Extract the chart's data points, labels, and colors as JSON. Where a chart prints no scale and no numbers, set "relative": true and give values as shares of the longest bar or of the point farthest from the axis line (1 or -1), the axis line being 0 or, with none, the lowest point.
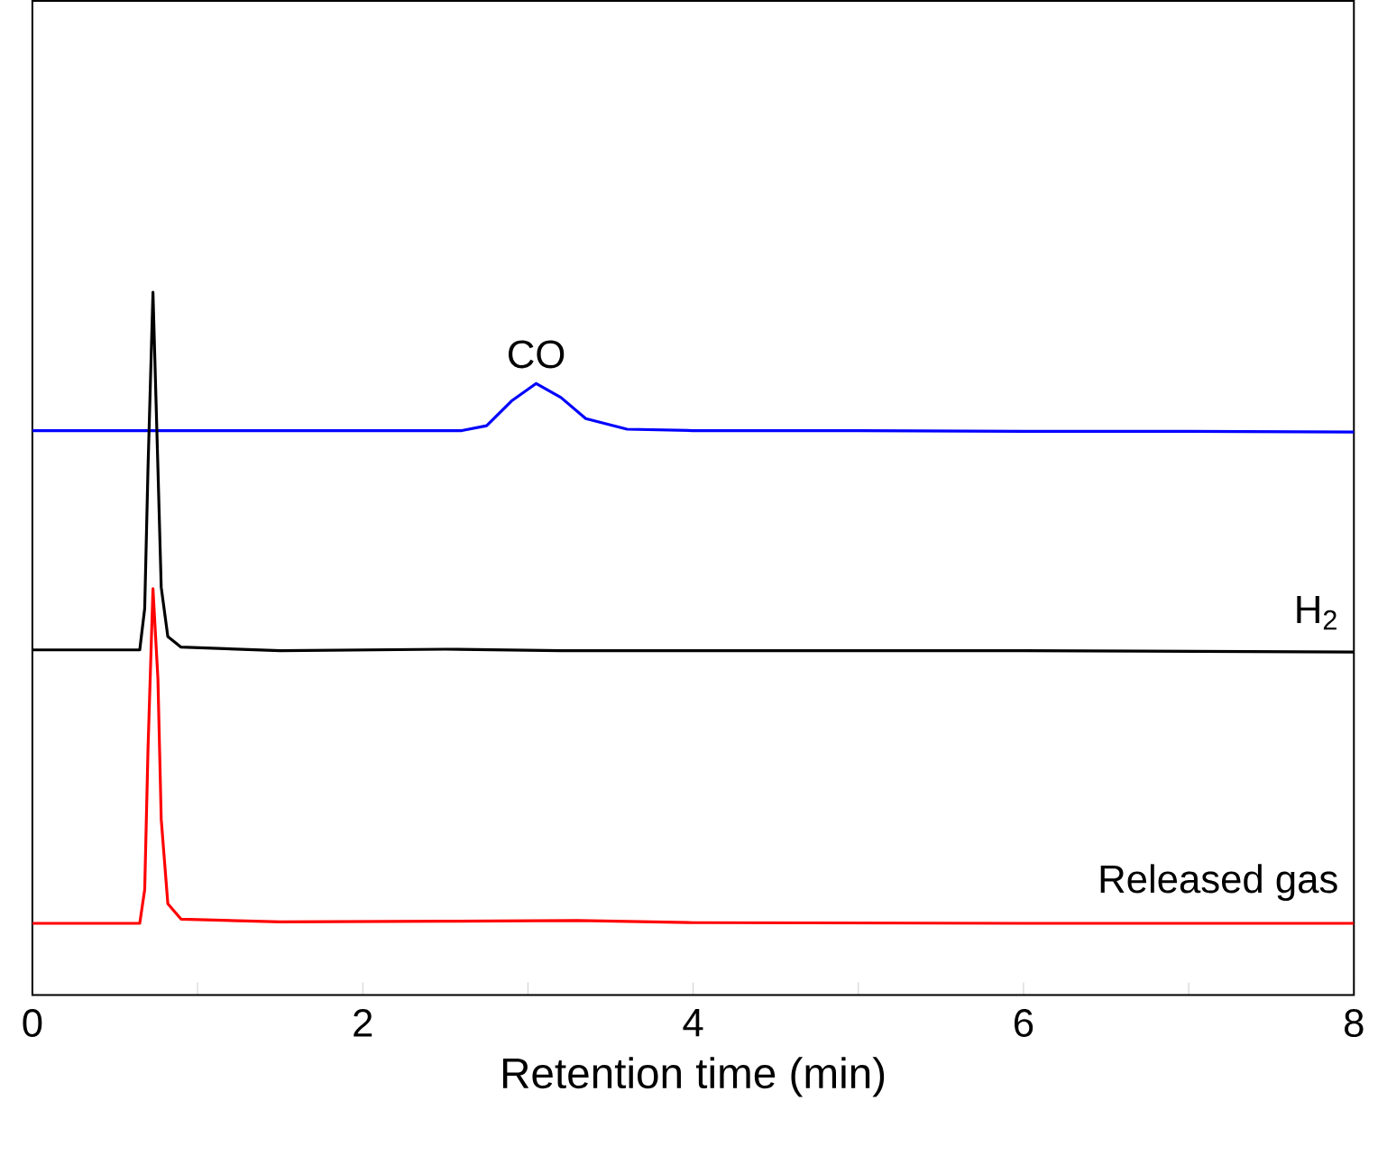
{
  "chart_data": {
    "type": "line",
    "xlabel": "Retention time (min)",
    "relative": true,
    "xlim": [
      0,
      8
    ],
    "xticks": [
      0,
      {
        "value": 1,
        "label": null
      },
      2,
      {
        "value": 3,
        "label": null
      },
      4,
      {
        "value": 5,
        "label": null
      },
      6,
      {
        "value": 7,
        "label": null
      },
      8
    ],
    "grid": false,
    "legend": false,
    "marker": "none",
    "line_style": "solid",
    "series": [
      {
        "name": "CO",
        "color": "#0000ff",
        "x": [
          0,
          1,
          2,
          2.6,
          2.75,
          2.9,
          3.05,
          3.2,
          3.35,
          3.6,
          4,
          5,
          6,
          7,
          8
        ],
        "values": [
          0.803,
          0.803,
          0.803,
          0.803,
          0.81,
          0.845,
          0.87,
          0.85,
          0.82,
          0.805,
          0.803,
          0.803,
          0.802,
          0.802,
          0.801
        ]
      },
      {
        "name": "H$_{2}$",
        "color": "#000000",
        "x": [
          0,
          0.65,
          0.68,
          0.7,
          0.73,
          0.76,
          0.78,
          0.82,
          0.9,
          1.5,
          2.5,
          3.2,
          4,
          6,
          8
        ],
        "values": [
          0.491,
          0.491,
          0.55,
          0.75,
          1.0,
          0.75,
          0.58,
          0.51,
          0.495,
          0.49,
          0.492,
          0.49,
          0.49,
          0.49,
          0.488
        ]
      },
      {
        "name": "Released gas",
        "color": "#ff0000",
        "x": [
          0,
          0.65,
          0.68,
          0.7,
          0.73,
          0.76,
          0.78,
          0.82,
          0.9,
          1.5,
          2.5,
          3.3,
          4,
          6,
          8
        ],
        "values": [
          0.102,
          0.102,
          0.15,
          0.35,
          0.578,
          0.45,
          0.25,
          0.13,
          0.108,
          0.104,
          0.105,
          0.106,
          0.103,
          0.102,
          0.102
        ]
      }
    ]
  }
}
